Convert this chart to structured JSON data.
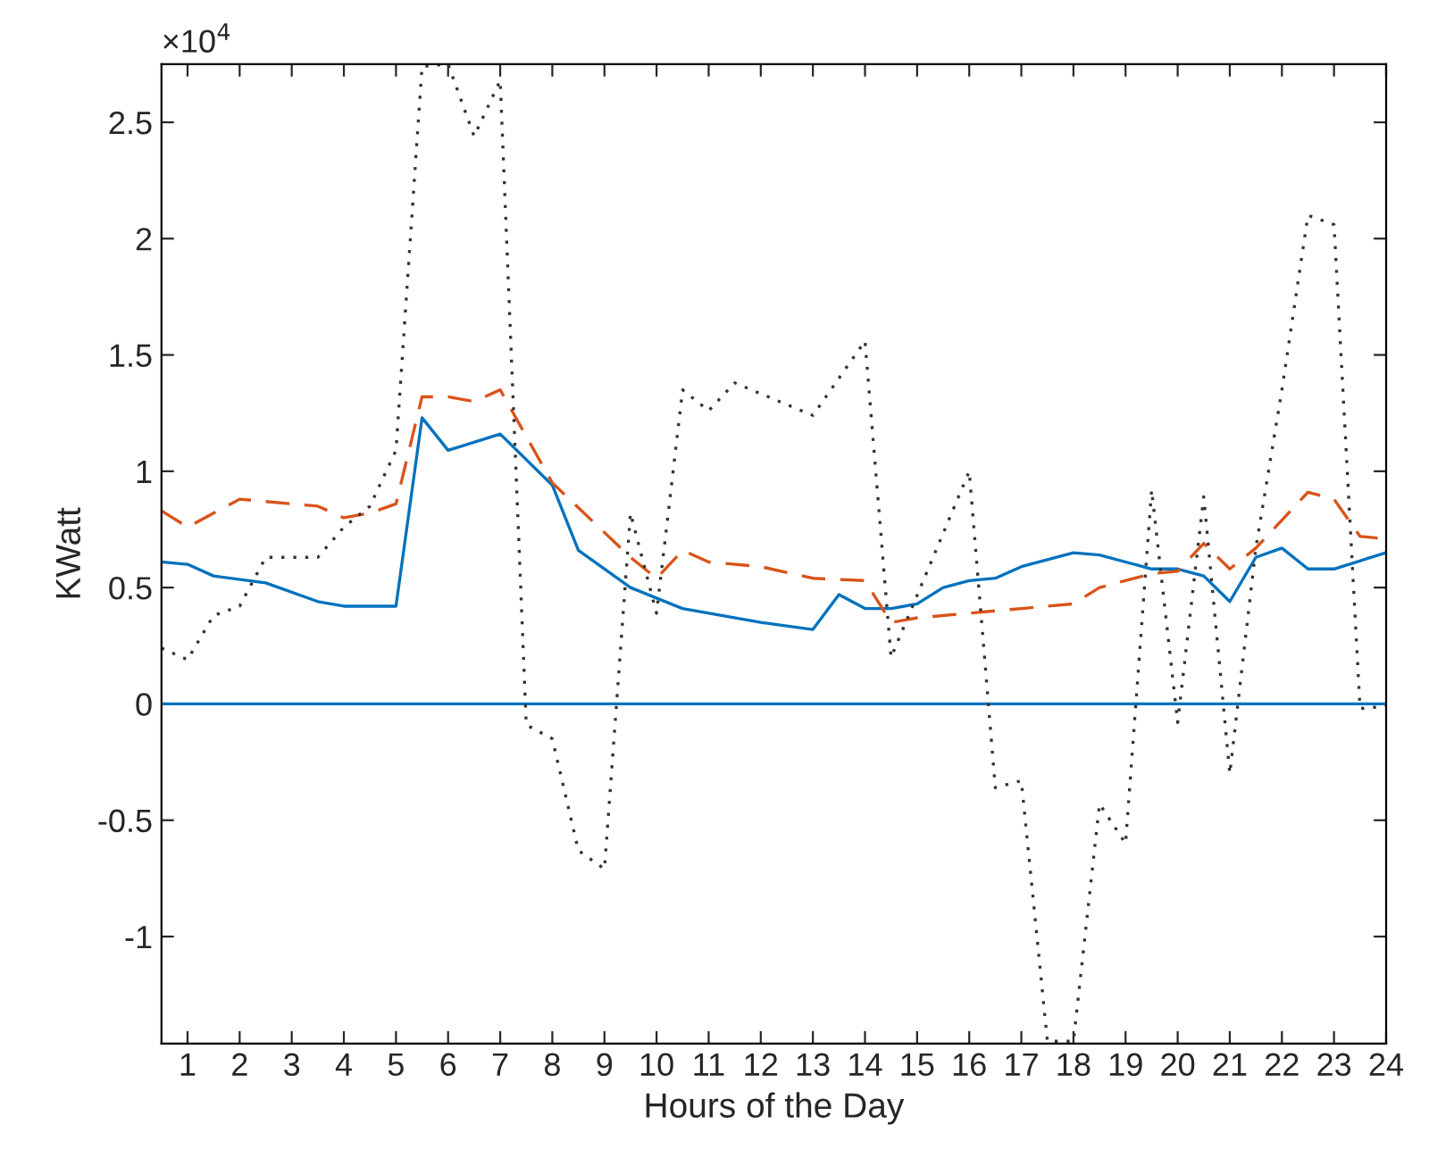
{
  "chart_data": {
    "type": "line",
    "xlabel": "Hours of the Day",
    "ylabel": "KWatt",
    "annotations": [
      "×10$^{4}$"
    ],
    "xlim": [
      0.5,
      24
    ],
    "xticks": [
      1,
      2,
      3,
      4,
      5,
      6,
      7,
      8,
      9,
      10,
      11,
      12,
      13,
      14,
      15,
      16,
      17,
      18,
      19,
      20,
      21,
      22,
      23,
      24
    ],
    "ylim": [
      -1.46,
      2.75
    ],
    "yticks": [
      -1,
      -0.5,
      0,
      0.5,
      1,
      1.5,
      2,
      2.5
    ],
    "grid": false,
    "legend": false,
    "marker": "none",
    "ref_lines": [
      {
        "axis": "y",
        "value": 0,
        "color": "#0072bd",
        "line_style": "solid"
      }
    ],
    "series": [
      {
        "color": "#0072bd",
        "line_style": "solid",
        "x": [
          0.5,
          1,
          1.5,
          2.5,
          3.5,
          4,
          5,
          5.5,
          6,
          7,
          8,
          8.5,
          9.5,
          10.5,
          12,
          13,
          13.5,
          14,
          14.5,
          15,
          15.5,
          16,
          16.5,
          17,
          18,
          18.5,
          19.5,
          20,
          20.5,
          21,
          21.5,
          22,
          22.5,
          23,
          24
        ],
        "values": [
          0.61,
          0.6,
          0.55,
          0.52,
          0.44,
          0.42,
          0.42,
          1.23,
          1.09,
          1.16,
          0.94,
          0.66,
          0.5,
          0.41,
          0.35,
          0.32,
          0.47,
          0.41,
          0.41,
          0.43,
          0.5,
          0.53,
          0.54,
          0.59,
          0.65,
          0.64,
          0.58,
          0.58,
          0.55,
          0.44,
          0.63,
          0.67,
          0.58,
          0.58,
          0.65
        ]
      },
      {
        "color": "#d95319",
        "line_style": "dashed",
        "x": [
          0.5,
          1,
          2,
          2.5,
          3.5,
          4,
          4.5,
          5,
          5.5,
          6,
          6.5,
          7,
          8,
          9.5,
          10,
          10.5,
          11,
          12,
          13,
          14,
          14.5,
          15,
          16,
          17,
          18,
          18.5,
          19.5,
          20,
          20.5,
          21,
          21.5,
          22,
          22.5,
          23,
          23.5,
          24
        ],
        "values": [
          0.83,
          0.76,
          0.88,
          0.87,
          0.85,
          0.8,
          0.82,
          0.86,
          1.32,
          1.32,
          1.3,
          1.35,
          0.95,
          0.63,
          0.54,
          0.66,
          0.61,
          0.59,
          0.54,
          0.53,
          0.35,
          0.37,
          0.39,
          0.41,
          0.43,
          0.5,
          0.56,
          0.57,
          0.69,
          0.58,
          0.67,
          0.79,
          0.91,
          0.88,
          0.72,
          0.71
        ]
      },
      {
        "color": "#333333",
        "line_style": "dotted",
        "x": [
          0.5,
          1,
          1.5,
          2,
          2.5,
          3.5,
          4,
          4.5,
          5,
          5.5,
          6,
          6.5,
          7,
          7.5,
          8,
          8.5,
          9,
          9.5,
          10,
          10.5,
          11,
          11.5,
          13,
          14,
          14.5,
          16,
          16.5,
          17,
          17.5,
          18,
          18.5,
          19,
          19.5,
          20,
          20.5,
          21,
          21.5,
          22,
          22.5,
          23,
          23.5,
          24
        ],
        "values": [
          0.24,
          0.19,
          0.38,
          0.42,
          0.63,
          0.63,
          0.76,
          0.85,
          1.09,
          2.74,
          2.75,
          2.44,
          2.68,
          -0.09,
          -0.15,
          -0.63,
          -0.71,
          0.82,
          0.39,
          1.35,
          1.26,
          1.38,
          1.24,
          1.56,
          0.2,
          1.0,
          -0.36,
          -0.33,
          -1.45,
          -1.45,
          -0.43,
          -0.6,
          0.92,
          -0.08,
          0.89,
          -0.3,
          0.67,
          1.35,
          2.1,
          2.06,
          -0.02,
          -0.01
        ]
      }
    ]
  }
}
